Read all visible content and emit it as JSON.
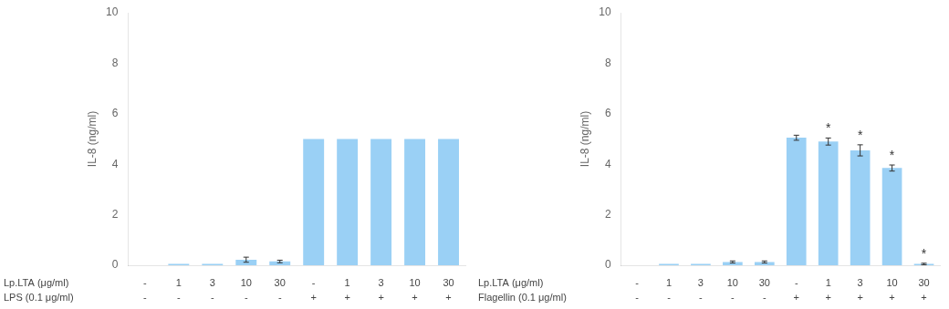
{
  "chart_data": [
    {
      "type": "bar",
      "ylabel": "IL-8 (ng/ml)",
      "categories": [
        null,
        null,
        null,
        null,
        null,
        null,
        null,
        null,
        null,
        null
      ],
      "values": [
        0.0,
        0.05,
        0.05,
        0.22,
        0.15,
        5.0,
        5.0,
        5.0,
        5.0,
        5.0
      ],
      "errors": [
        0.0,
        0.0,
        0.0,
        0.1,
        0.05,
        0.0,
        0.0,
        0.0,
        0.0,
        0.0
      ],
      "significance": [
        null,
        null,
        null,
        null,
        null,
        null,
        null,
        null,
        null,
        null
      ],
      "rows": [
        {
          "label": "Lp.LTA (μg/ml)",
          "values": [
            "-",
            "1",
            "3",
            "10",
            "30",
            "-",
            "1",
            "3",
            "10",
            "30"
          ]
        },
        {
          "label": "LPS (0.1 μg/ml)",
          "values": [
            "-",
            "-",
            "-",
            "-",
            "-",
            "+",
            "+",
            "+",
            "+",
            "+"
          ]
        }
      ],
      "ylim": [
        0,
        10
      ],
      "yticks": [
        0,
        2,
        4,
        6,
        8,
        10
      ],
      "tick_labels": "y",
      "grid": false
    },
    {
      "type": "bar",
      "ylabel": "IL-8 (ng/ml)",
      "categories": [
        null,
        null,
        null,
        null,
        null,
        null,
        null,
        null,
        null,
        null
      ],
      "values": [
        0.0,
        0.05,
        0.05,
        0.13,
        0.13,
        5.05,
        4.9,
        4.55,
        3.85,
        0.05
      ],
      "errors": [
        0.0,
        0.0,
        0.0,
        0.04,
        0.04,
        0.1,
        0.14,
        0.22,
        0.12,
        0.03
      ],
      "significance": [
        null,
        null,
        null,
        null,
        null,
        null,
        "*",
        "*",
        "*",
        "*"
      ],
      "rows": [
        {
          "label": "Lp.LTA (μg/ml)",
          "values": [
            "-",
            "1",
            "3",
            "10",
            "30",
            "-",
            "1",
            "3",
            "10",
            "30"
          ]
        },
        {
          "label": "Flagellin (0.1 μg/ml)",
          "values": [
            "-",
            "-",
            "-",
            "-",
            "-",
            "+",
            "+",
            "+",
            "+",
            "+"
          ]
        }
      ],
      "ylim": [
        0,
        10
      ],
      "yticks": [
        0,
        2,
        4,
        6,
        8,
        10
      ],
      "tick_labels": "y",
      "grid": false
    }
  ]
}
